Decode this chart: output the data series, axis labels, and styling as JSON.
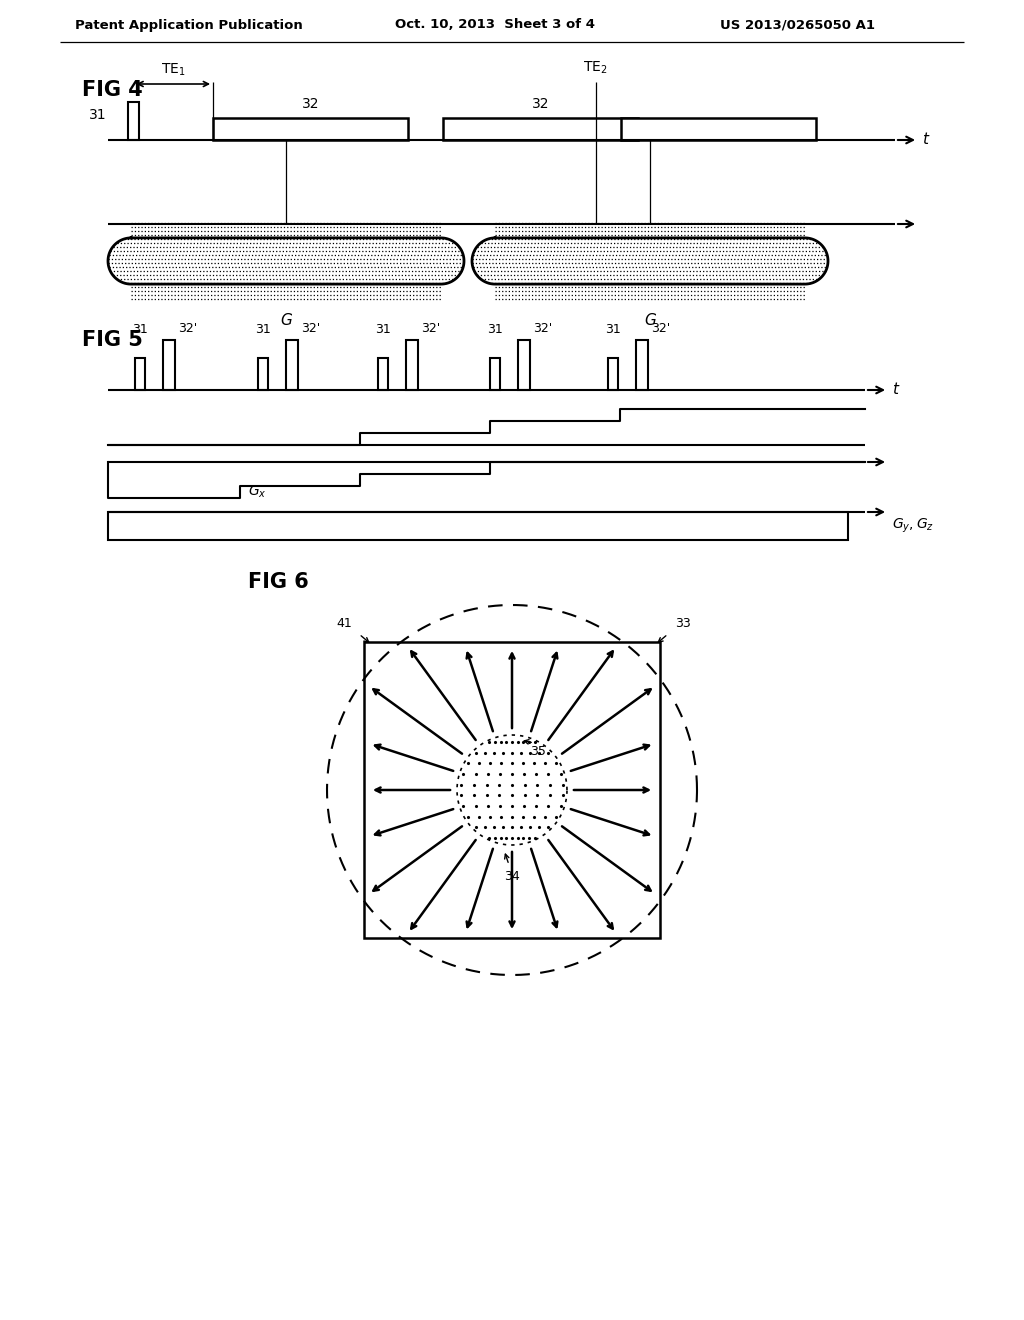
{
  "bg_color": "#ffffff",
  "header_left": "Patent Application Publication",
  "header_mid": "Oct. 10, 2013  Sheet 3 of 4",
  "header_right": "US 2013/0265050 A1",
  "fig4_label": "FIG 4",
  "fig5_label": "FIG 5",
  "fig6_label": "FIG 6",
  "line_color": "#000000"
}
